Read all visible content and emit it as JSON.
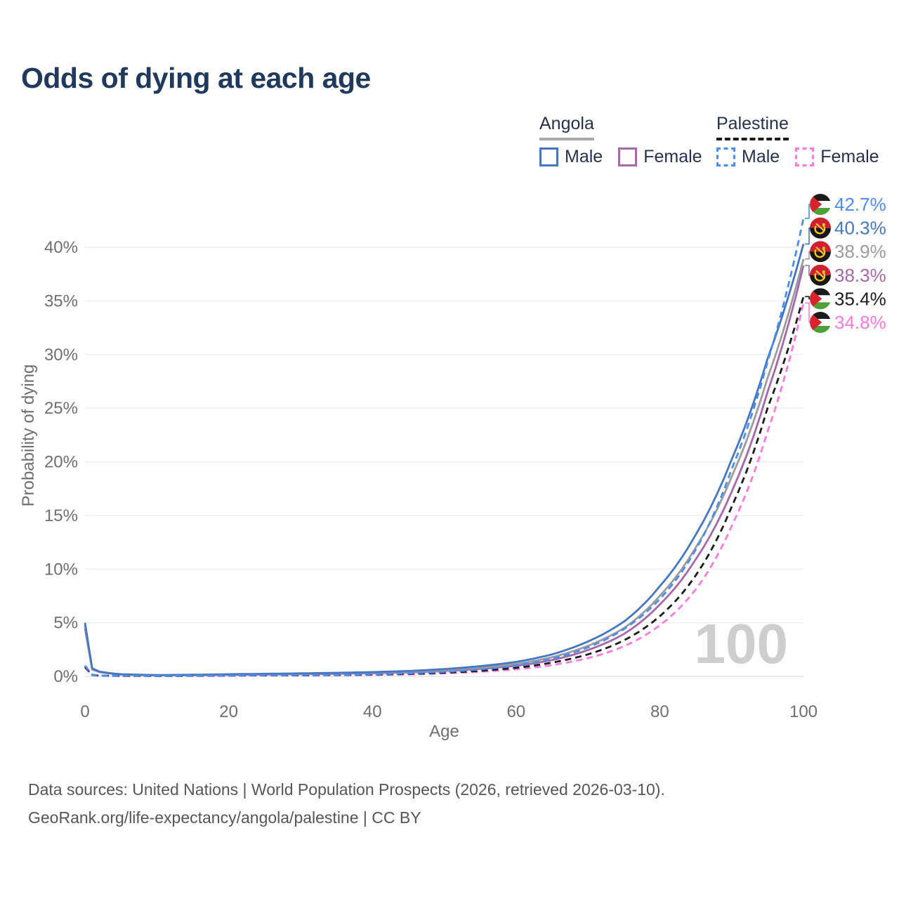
{
  "title": "Odds of dying at each age",
  "watermark": "100",
  "legend": {
    "groups": [
      {
        "country": "Angola",
        "line_style": "solid",
        "line_color": "#a9a9a9",
        "items": [
          {
            "label": "Male",
            "color": "#4577c0",
            "style": "solid"
          },
          {
            "label": "Female",
            "color": "#a668ab",
            "style": "solid"
          }
        ]
      },
      {
        "country": "Palestine",
        "line_style": "dashed",
        "line_color": "#1c1c1c",
        "items": [
          {
            "label": "Male",
            "color": "#4b8df0",
            "style": "dashed"
          },
          {
            "label": "Female",
            "color": "#fb7ae1",
            "style": "dashed"
          }
        ]
      }
    ]
  },
  "footer": {
    "line1": "Data sources: United Nations | World Population Prospects (2026, retrieved 2026-03-10).",
    "line2": "GeoRank.org/life-expectancy/angola/palestine | CC BY"
  },
  "chart_data": {
    "type": "line",
    "title": "Odds of dying at each age",
    "xlabel": "Age",
    "ylabel": "Probability of dying",
    "xlim": [
      0,
      100
    ],
    "ylim": [
      0,
      44
    ],
    "grid": "horizontal",
    "x_ticks": [
      0,
      20,
      40,
      60,
      80,
      100
    ],
    "y_ticks": [
      {
        "value": 0,
        "label": "0%"
      },
      {
        "value": 5,
        "label": "5%"
      },
      {
        "value": 10,
        "label": "10%"
      },
      {
        "value": 15,
        "label": "15%"
      },
      {
        "value": 20,
        "label": "20%"
      },
      {
        "value": 25,
        "label": "25%"
      },
      {
        "value": 30,
        "label": "30%"
      },
      {
        "value": 35,
        "label": "35%"
      },
      {
        "value": 40,
        "label": "40%"
      }
    ],
    "x": [
      0,
      1,
      2,
      5,
      10,
      15,
      20,
      25,
      30,
      35,
      40,
      45,
      50,
      55,
      60,
      65,
      70,
      75,
      80,
      85,
      90,
      95,
      100
    ],
    "series": [
      {
        "id": "palestine-male",
        "name": "Palestine Male",
        "flag": "palestine",
        "dashed": true,
        "color": "#4b8df0",
        "label_color": "#4b8df0",
        "end_label": "42.7%",
        "values": [
          1.0,
          0.15,
          0.08,
          0.05,
          0.04,
          0.06,
          0.09,
          0.12,
          0.13,
          0.15,
          0.2,
          0.28,
          0.42,
          0.65,
          1.02,
          1.65,
          2.7,
          4.4,
          7.2,
          11.8,
          19.3,
          29.3,
          42.7
        ]
      },
      {
        "id": "angola-male",
        "name": "Angola Male",
        "flag": "angola",
        "dashed": false,
        "color": "#4577c0",
        "label_color": "#4577c0",
        "end_label": "40.3%",
        "values": [
          5.0,
          0.75,
          0.45,
          0.2,
          0.12,
          0.15,
          0.2,
          0.24,
          0.28,
          0.33,
          0.4,
          0.5,
          0.68,
          0.95,
          1.35,
          2.05,
          3.25,
          5.1,
          8.4,
          13.2,
          20.2,
          29.6,
          40.3
        ]
      },
      {
        "id": "angola-both",
        "name": "Angola Both sexes",
        "flag": "angola",
        "dashed": false,
        "color": "#9c9c9c",
        "label_color": "#9c9c9c",
        "end_label": "38.9%",
        "values": [
          4.8,
          0.7,
          0.42,
          0.18,
          0.11,
          0.13,
          0.17,
          0.21,
          0.24,
          0.28,
          0.34,
          0.43,
          0.58,
          0.82,
          1.16,
          1.78,
          2.85,
          4.5,
          7.5,
          12.0,
          18.6,
          27.8,
          38.9
        ]
      },
      {
        "id": "angola-female",
        "name": "Angola Female",
        "flag": "angola",
        "dashed": false,
        "color": "#a668ab",
        "label_color": "#a668ab",
        "end_label": "38.3%",
        "values": [
          4.5,
          0.65,
          0.4,
          0.17,
          0.1,
          0.11,
          0.14,
          0.17,
          0.2,
          0.24,
          0.29,
          0.37,
          0.5,
          0.7,
          0.98,
          1.52,
          2.45,
          3.95,
          6.7,
          10.9,
          17.2,
          26.5,
          38.3
        ]
      },
      {
        "id": "palestine-both",
        "name": "Palestine Both sexes",
        "flag": "palestine",
        "dashed": true,
        "color": "#1c1c1c",
        "label_color": "#1c1c1c",
        "end_label": "35.4%",
        "values": [
          0.9,
          0.13,
          0.07,
          0.045,
          0.035,
          0.05,
          0.08,
          0.1,
          0.11,
          0.13,
          0.17,
          0.23,
          0.34,
          0.52,
          0.8,
          1.28,
          2.05,
          3.35,
          5.6,
          9.4,
          15.8,
          25.0,
          35.4
        ]
      },
      {
        "id": "palestine-female",
        "name": "Palestine Female",
        "flag": "palestine",
        "dashed": true,
        "color": "#fb7ae1",
        "label_color": "#fb7ae1",
        "end_label": "34.8%",
        "values": [
          0.8,
          0.12,
          0.06,
          0.04,
          0.03,
          0.04,
          0.06,
          0.08,
          0.09,
          0.11,
          0.14,
          0.19,
          0.28,
          0.43,
          0.66,
          1.05,
          1.7,
          2.8,
          4.75,
          8.1,
          14.0,
          22.8,
          34.8
        ]
      }
    ],
    "flag_colors": {
      "palestine": {
        "black": "#1b1b1b",
        "white": "#ffffff",
        "green": "#4f9e38",
        "red": "#d8252c"
      },
      "angola": {
        "red": "#cf2030",
        "black": "#181818",
        "yellow": "#f6c32c"
      }
    }
  }
}
